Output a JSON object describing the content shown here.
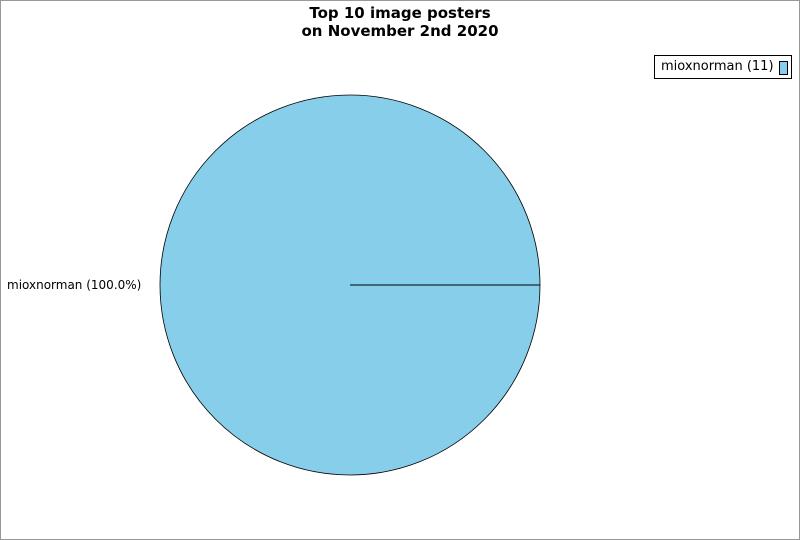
{
  "chart_data": {
    "type": "pie",
    "title_lines": [
      "Top 10 image posters",
      "on November 2nd 2020"
    ],
    "slices": [
      {
        "label": "mioxnorman",
        "value": 11,
        "percent": 100.0,
        "color": "#87ceeb",
        "legend_text": "mioxnorman (11)",
        "slice_label": "mioxnorman (100.0%)"
      }
    ],
    "legend_placement": "top-right"
  }
}
